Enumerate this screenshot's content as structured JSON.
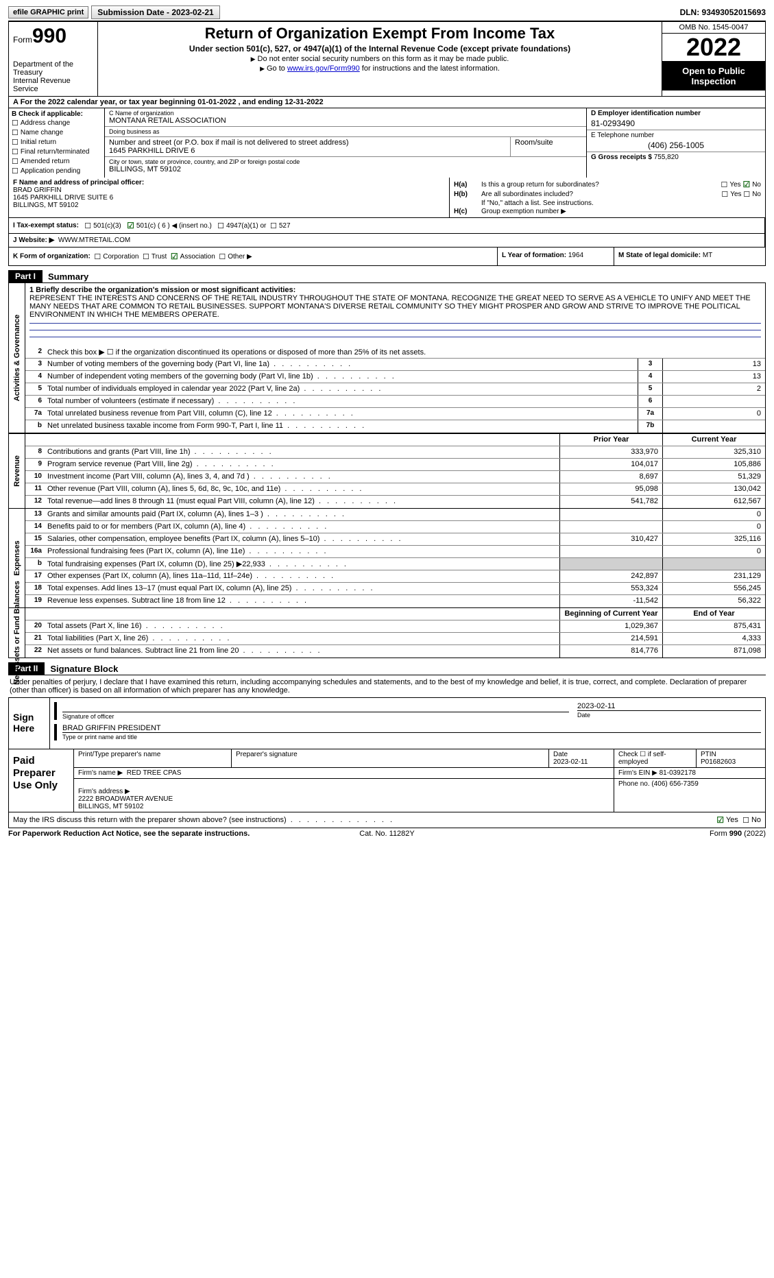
{
  "topbar": {
    "efile": "efile GRAPHIC print",
    "submission": "Submission Date - 2023-02-21",
    "dln": "DLN: 93493052015693"
  },
  "header": {
    "form_label": "Form",
    "form_number": "990",
    "title": "Return of Organization Exempt From Income Tax",
    "subtitle": "Under section 501(c), 527, or 4947(a)(1) of the Internal Revenue Code (except private foundations)",
    "note1": "Do not enter social security numbers on this form as it may be made public.",
    "note2_pre": "Go to ",
    "note2_link": "www.irs.gov/Form990",
    "note2_post": " for instructions and the latest information.",
    "dept": "Department of the Treasury\nInternal Revenue Service",
    "omb": "OMB No. 1545-0047",
    "year": "2022",
    "open": "Open to Public Inspection"
  },
  "rowA": "A For the 2022 calendar year, or tax year beginning 01-01-2022   , and ending 12-31-2022",
  "colB": {
    "title": "B Check if applicable:",
    "items": [
      "Address change",
      "Name change",
      "Initial return",
      "Final return/terminated",
      "Amended return",
      "Application pending"
    ]
  },
  "colC": {
    "name_lbl": "C Name of organization",
    "name": "MONTANA RETAIL ASSOCIATION",
    "dba_lbl": "Doing business as",
    "dba": "",
    "street_lbl": "Number and street (or P.O. box if mail is not delivered to street address)",
    "street": "1645 PARKHILL DRIVE 6",
    "room_lbl": "Room/suite",
    "city_lbl": "City or town, state or province, country, and ZIP or foreign postal code",
    "city": "BILLINGS, MT  59102"
  },
  "colD": {
    "ein_lbl": "D Employer identification number",
    "ein": "81-0293490",
    "tel_lbl": "E Telephone number",
    "tel": "(406) 256-1005",
    "gross_lbl": "G Gross receipts $",
    "gross": "755,820"
  },
  "rowF": {
    "lbl": "F  Name and address of principal officer:",
    "name": "BRAD GRIFFIN",
    "addr1": "1645 PARKHILL DRIVE SUITE 6",
    "addr2": "BILLINGS, MT  59102"
  },
  "rowH": {
    "ha": "Is this a group return for subordinates?",
    "hb": "Are all subordinates included?",
    "hb_note": "If \"No,\" attach a list. See instructions.",
    "hc": "Group exemption number ▶"
  },
  "rowI": {
    "lbl": "I  Tax-exempt status:",
    "opts": [
      "501(c)(3)",
      "501(c) ( 6 ) ◀ (insert no.)",
      "4947(a)(1) or",
      "527"
    ]
  },
  "rowJ": {
    "lbl": "J  Website: ▶",
    "val": "WWW.MTRETAIL.COM"
  },
  "rowK": {
    "lbl": "K Form of organization:",
    "opts": [
      "Corporation",
      "Trust",
      "Association",
      "Other ▶"
    ],
    "l_lbl": "L Year of formation:",
    "l_val": "1964",
    "m_lbl": "M State of legal domicile:",
    "m_val": "MT"
  },
  "partI": {
    "tag": "Part I",
    "title": "Summary",
    "mission_lbl": "1  Briefly describe the organization's mission or most significant activities:",
    "mission": "REPRESENT THE INTERESTS AND CONCERNS OF THE RETAIL INDUSTRY THROUGHOUT THE STATE OF MONTANA. RECOGNIZE THE GREAT NEED TO SERVE AS A VEHICLE TO UNIFY AND MEET THE MANY NEEDS THAT ARE COMMON TO RETAIL BUSINESSES. SUPPORT MONTANA'S DIVERSE RETAIL COMMUNITY SO THEY MIGHT PROSPER AND GROW AND STRIVE TO IMPROVE THE POLITICAL ENVIRONMENT IN WHICH THE MEMBERS OPERATE.",
    "line2": "Check this box ▶ ☐  if the organization discontinued its operations or disposed of more than 25% of its net assets.",
    "gov": {
      "label": "Activities & Governance",
      "rows": [
        {
          "n": "3",
          "t": "Number of voting members of the governing body (Part VI, line 1a)",
          "box": "3",
          "v": "13"
        },
        {
          "n": "4",
          "t": "Number of independent voting members of the governing body (Part VI, line 1b)",
          "box": "4",
          "v": "13"
        },
        {
          "n": "5",
          "t": "Total number of individuals employed in calendar year 2022 (Part V, line 2a)",
          "box": "5",
          "v": "2"
        },
        {
          "n": "6",
          "t": "Total number of volunteers (estimate if necessary)",
          "box": "6",
          "v": ""
        },
        {
          "n": "7a",
          "t": "Total unrelated business revenue from Part VIII, column (C), line 12",
          "box": "7a",
          "v": "0"
        },
        {
          "n": "b",
          "t": "Net unrelated business taxable income from Form 990-T, Part I, line 11",
          "box": "7b",
          "v": ""
        }
      ]
    },
    "hdr_prior": "Prior Year",
    "hdr_current": "Current Year",
    "rev": {
      "label": "Revenue",
      "rows": [
        {
          "n": "8",
          "t": "Contributions and grants (Part VIII, line 1h)",
          "p": "333,970",
          "c": "325,310"
        },
        {
          "n": "9",
          "t": "Program service revenue (Part VIII, line 2g)",
          "p": "104,017",
          "c": "105,886"
        },
        {
          "n": "10",
          "t": "Investment income (Part VIII, column (A), lines 3, 4, and 7d )",
          "p": "8,697",
          "c": "51,329"
        },
        {
          "n": "11",
          "t": "Other revenue (Part VIII, column (A), lines 5, 6d, 8c, 9c, 10c, and 11e)",
          "p": "95,098",
          "c": "130,042"
        },
        {
          "n": "12",
          "t": "Total revenue—add lines 8 through 11 (must equal Part VIII, column (A), line 12)",
          "p": "541,782",
          "c": "612,567"
        }
      ]
    },
    "exp": {
      "label": "Expenses",
      "rows": [
        {
          "n": "13",
          "t": "Grants and similar amounts paid (Part IX, column (A), lines 1–3 )",
          "p": "",
          "c": "0"
        },
        {
          "n": "14",
          "t": "Benefits paid to or for members (Part IX, column (A), line 4)",
          "p": "",
          "c": "0"
        },
        {
          "n": "15",
          "t": "Salaries, other compensation, employee benefits (Part IX, column (A), lines 5–10)",
          "p": "310,427",
          "c": "325,116"
        },
        {
          "n": "16a",
          "t": "Professional fundraising fees (Part IX, column (A), line 11e)",
          "p": "",
          "c": "0"
        },
        {
          "n": "b",
          "t": "Total fundraising expenses (Part IX, column (D), line 25) ▶22,933",
          "p": "shade",
          "c": "shade"
        },
        {
          "n": "17",
          "t": "Other expenses (Part IX, column (A), lines 11a–11d, 11f–24e)",
          "p": "242,897",
          "c": "231,129"
        },
        {
          "n": "18",
          "t": "Total expenses. Add lines 13–17 (must equal Part IX, column (A), line 25)",
          "p": "553,324",
          "c": "556,245"
        },
        {
          "n": "19",
          "t": "Revenue less expenses. Subtract line 18 from line 12",
          "p": "-11,542",
          "c": "56,322"
        }
      ]
    },
    "hdr_begin": "Beginning of Current Year",
    "hdr_end": "End of Year",
    "net": {
      "label": "Net Assets or Fund Balances",
      "rows": [
        {
          "n": "20",
          "t": "Total assets (Part X, line 16)",
          "p": "1,029,367",
          "c": "875,431"
        },
        {
          "n": "21",
          "t": "Total liabilities (Part X, line 26)",
          "p": "214,591",
          "c": "4,333"
        },
        {
          "n": "22",
          "t": "Net assets or fund balances. Subtract line 21 from line 20",
          "p": "814,776",
          "c": "871,098"
        }
      ]
    }
  },
  "partII": {
    "tag": "Part II",
    "title": "Signature Block",
    "penalty": "Under penalties of perjury, I declare that I have examined this return, including accompanying schedules and statements, and to the best of my knowledge and belief, it is true, correct, and complete. Declaration of preparer (other than officer) is based on all information of which preparer has any knowledge.",
    "sign_here": "Sign Here",
    "sig_officer": "Signature of officer",
    "sig_date": "2023-02-11",
    "date_lbl": "Date",
    "officer_name": "BRAD GRIFFIN  PRESIDENT",
    "officer_name_lbl": "Type or print name and title",
    "paid": "Paid Preparer Use Only",
    "p_name_lbl": "Print/Type preparer's name",
    "p_sig_lbl": "Preparer's signature",
    "p_date_lbl": "Date",
    "p_date": "2023-02-11",
    "p_check": "Check ☐ if self-employed",
    "ptin_lbl": "PTIN",
    "ptin": "P01682603",
    "firm_name_lbl": "Firm's name    ▶",
    "firm_name": "RED TREE CPAS",
    "firm_ein_lbl": "Firm's EIN ▶",
    "firm_ein": "81-0392178",
    "firm_addr_lbl": "Firm's address ▶",
    "firm_addr": "2222 BROADWATER AVENUE\nBILLINGS, MT  59102",
    "phone_lbl": "Phone no.",
    "phone": "(406) 656-7359",
    "discuss": "May the IRS discuss this return with the preparer shown above? (see instructions)"
  },
  "footer": {
    "left": "For Paperwork Reduction Act Notice, see the separate instructions.",
    "center": "Cat. No. 11282Y",
    "right_pre": "Form ",
    "right_form": "990",
    "right_post": " (2022)"
  }
}
